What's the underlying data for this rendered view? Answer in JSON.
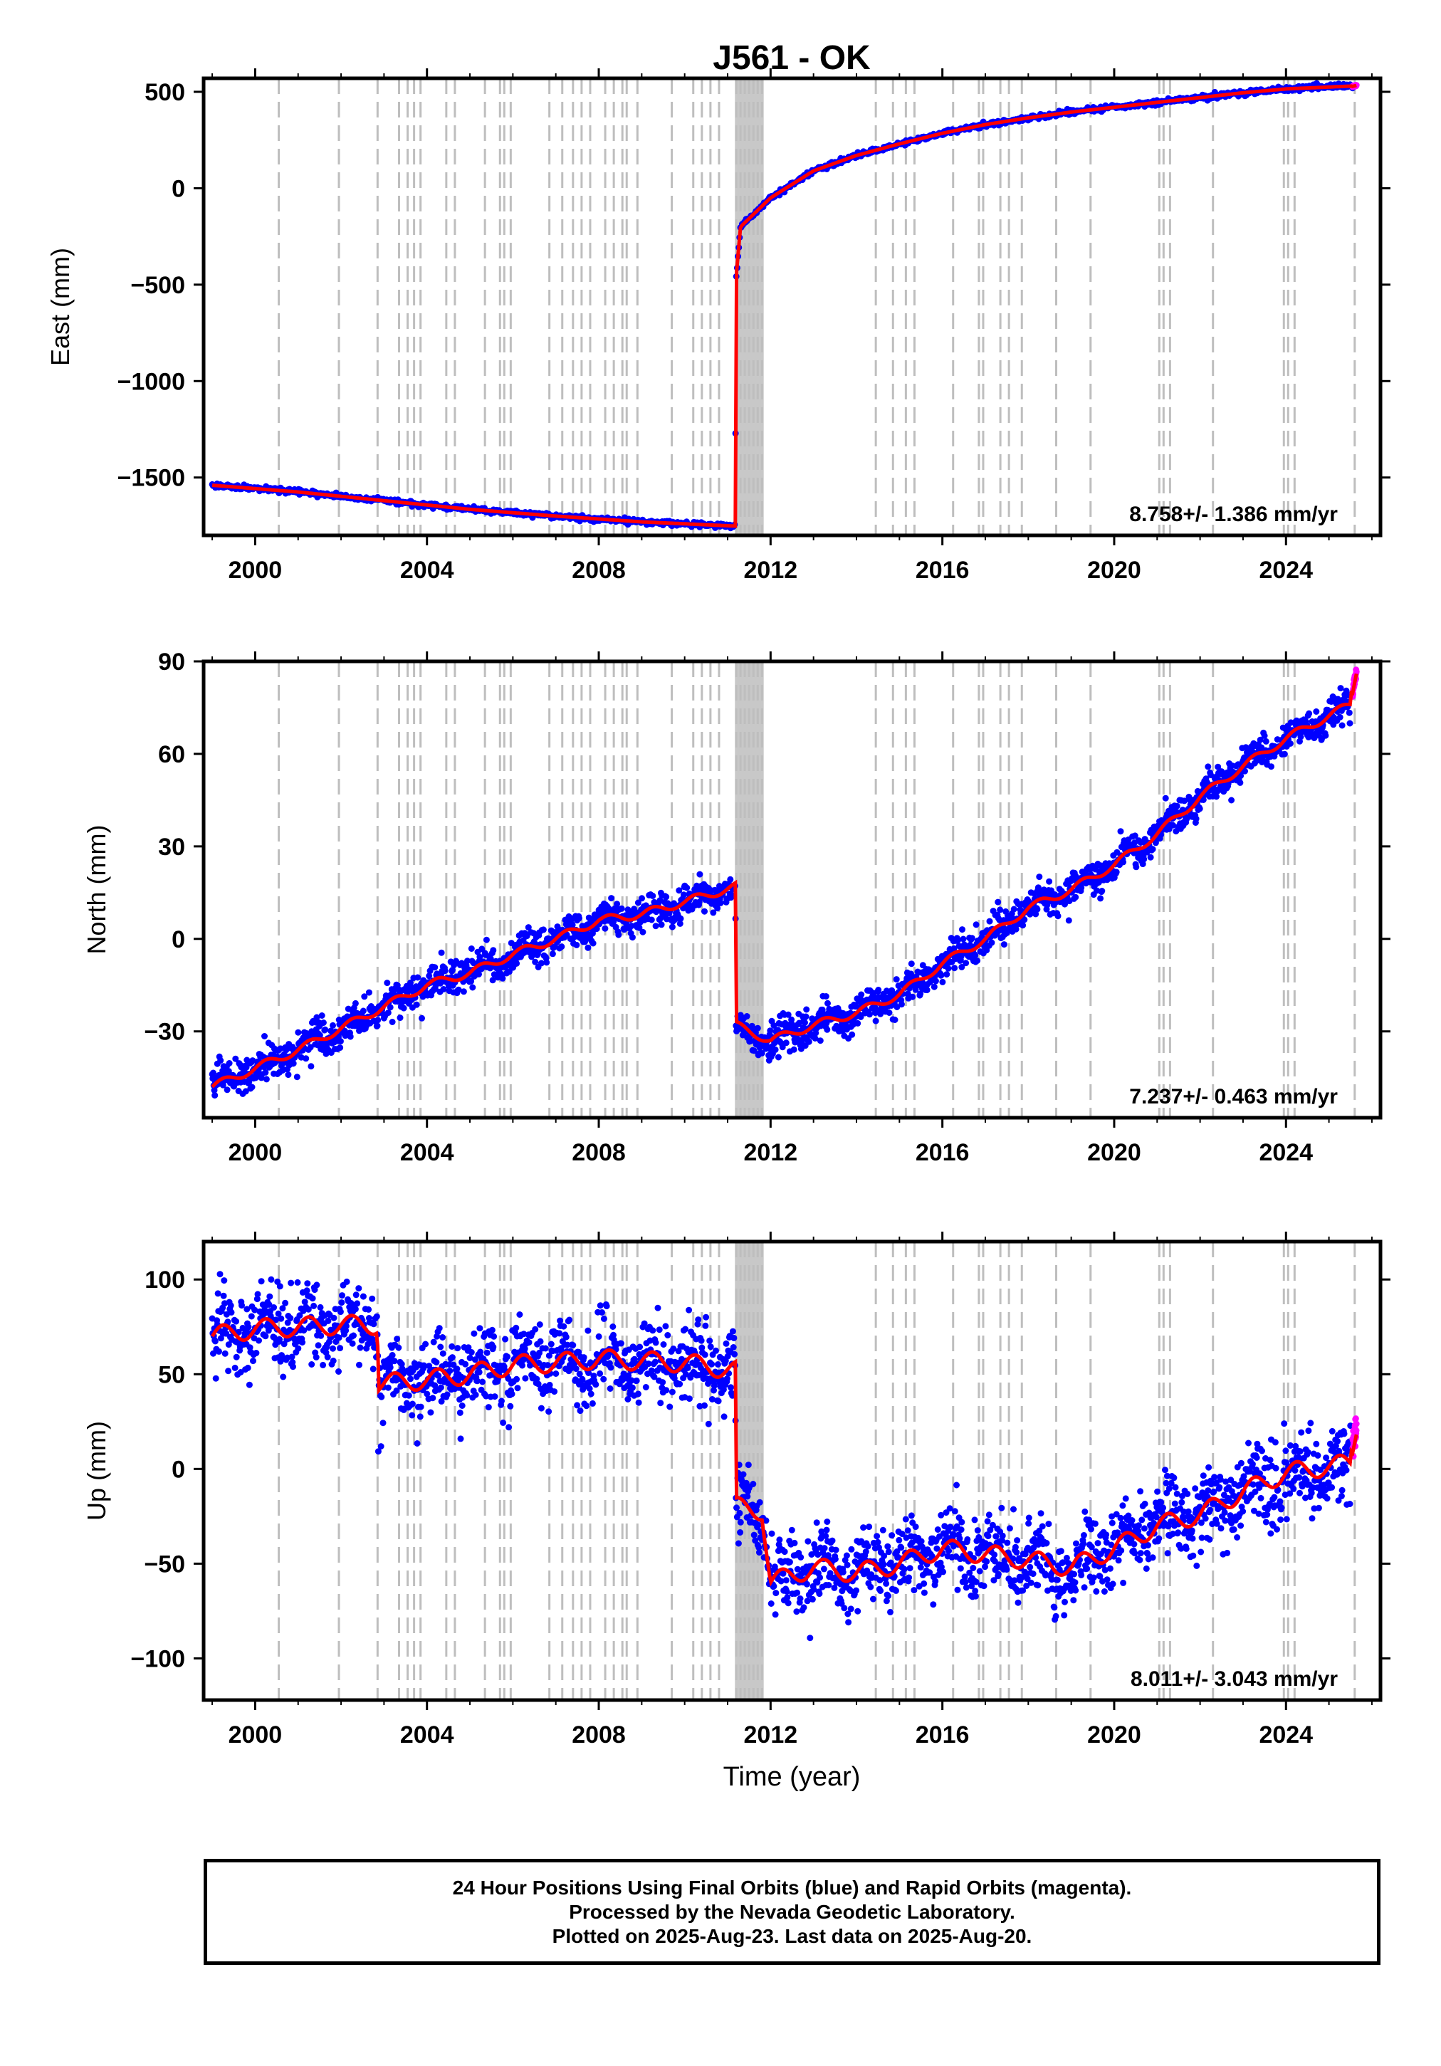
{
  "title": "J561 - OK",
  "footer": {
    "line1": "24 Hour Positions Using Final Orbits (blue) and Rapid Orbits (magenta).",
    "line2": "Processed by the Nevada Geodetic Laboratory.",
    "line3": "Plotted on 2025-Aug-23. Last data on 2025-Aug-20."
  },
  "colors": {
    "final_orbits": "#0000ff",
    "rapid_orbits": "#ff00ff",
    "model_fit": "#ff0000",
    "event_lines": "#bebebe"
  },
  "chart_data": [
    {
      "type": "scatter",
      "panel": "east",
      "ylabel": "East (mm)",
      "xlabel": "",
      "xlim": [
        1998.8,
        2026.2
      ],
      "ylim": [
        -1800,
        570
      ],
      "xticks": [
        2000,
        2004,
        2008,
        2012,
        2016,
        2020,
        2024
      ],
      "yticks": [
        -1500,
        -1000,
        -500,
        0,
        500
      ],
      "ytick_labels": [
        "−1500",
        "−1000",
        "−500",
        "0",
        "500"
      ],
      "grid": false,
      "rate_text": "8.758+/- 1.386 mm/yr",
      "series": [
        {
          "kind": "final",
          "x": [
            1999.0,
            2001.0,
            2003.0,
            2005.0,
            2007.0,
            2009.0,
            2011.18,
            2011.19,
            2011.3,
            2012.0,
            2013.0,
            2014.0,
            2015.0,
            2016.0,
            2017.0,
            2018.0,
            2019.0,
            2020.0,
            2021.0,
            2022.0,
            2023.0,
            2024.0,
            2025.55
          ],
          "y": [
            -1540,
            -1575,
            -1620,
            -1665,
            -1700,
            -1730,
            -1752,
            -480,
            -200,
            -50,
            90,
            170,
            230,
            285,
            330,
            365,
            395,
            420,
            445,
            470,
            495,
            515,
            530
          ]
        },
        {
          "kind": "rapid",
          "x": [
            2025.55,
            2025.64
          ],
          "y": [
            528,
            533
          ]
        }
      ]
    },
    {
      "type": "scatter",
      "panel": "north",
      "ylabel": "North (mm)",
      "xlabel": "",
      "xlim": [
        1998.8,
        2026.2
      ],
      "ylim": [
        -58,
        90
      ],
      "xticks": [
        2000,
        2004,
        2008,
        2012,
        2016,
        2020,
        2024
      ],
      "yticks": [
        -30,
        0,
        30,
        60,
        90
      ],
      "ytick_labels": [
        "−30",
        "0",
        "30",
        "60",
        "90"
      ],
      "grid": false,
      "rate_text": "7.237+/- 0.463 mm/yr",
      "series": [
        {
          "kind": "final",
          "x": [
            1999.0,
            2000.0,
            2001.0,
            2002.0,
            2003.0,
            2004.0,
            2005.0,
            2006.0,
            2007.0,
            2008.0,
            2009.0,
            2010.0,
            2011.18,
            2011.19,
            2012.0,
            2013.0,
            2014.0,
            2015.0,
            2016.0,
            2017.0,
            2018.0,
            2019.0,
            2020.0,
            2021.0,
            2022.0,
            2023.0,
            2024.0,
            2025.5
          ],
          "y": [
            -48,
            -42,
            -36,
            -29,
            -22,
            -15,
            -11,
            -5,
            0,
            6,
            8,
            12,
            17,
            -28,
            -33,
            -28,
            -24,
            -18,
            -8,
            0,
            10,
            16,
            24,
            34,
            46,
            56,
            65,
            76
          ]
        },
        {
          "kind": "rapid",
          "x": [
            2025.55,
            2025.64
          ],
          "y": [
            80,
            87
          ]
        }
      ]
    },
    {
      "type": "scatter",
      "panel": "up",
      "ylabel": "Up (mm)",
      "xlabel": "Time (year)",
      "xlim": [
        1998.8,
        2026.2
      ],
      "ylim": [
        -122,
        120
      ],
      "xticks": [
        2000,
        2004,
        2008,
        2012,
        2016,
        2020,
        2024
      ],
      "yticks": [
        -100,
        -50,
        0,
        50,
        100
      ],
      "ytick_labels": [
        "−100",
        "−50",
        "0",
        "50",
        "100"
      ],
      "grid": false,
      "rate_text": "8.011+/- 3.043 mm/yr",
      "series": [
        {
          "kind": "final",
          "x": [
            1999.0,
            2000.0,
            2001.0,
            2002.0,
            2002.85,
            2002.86,
            2004.0,
            2005.0,
            2006.0,
            2007.0,
            2008.0,
            2009.0,
            2010.0,
            2011.18,
            2011.19,
            2011.8,
            2012.0,
            2013.0,
            2014.0,
            2015.0,
            2016.0,
            2017.0,
            2018.0,
            2019.0,
            2020.0,
            2021.0,
            2022.0,
            2023.0,
            2024.0,
            2025.5
          ],
          "y": [
            70,
            74,
            75,
            76,
            76,
            45,
            47,
            50,
            55,
            56,
            58,
            57,
            56,
            52,
            -20,
            -22,
            -60,
            -52,
            -55,
            -50,
            -42,
            -45,
            -48,
            -52,
            -42,
            -30,
            -24,
            -12,
            -2,
            3
          ]
        },
        {
          "kind": "rapid",
          "x": [
            2025.55,
            2025.64
          ],
          "y": [
            10,
            22
          ]
        }
      ]
    }
  ],
  "event_lines": [
    2000.55,
    2001.95,
    2002.85,
    2003.35,
    2003.55,
    2003.7,
    2003.85,
    2004.45,
    2004.65,
    2005.35,
    2005.7,
    2005.8,
    2005.95,
    2006.85,
    2007.15,
    2007.4,
    2007.6,
    2007.8,
    2008.15,
    2008.35,
    2008.55,
    2008.65,
    2008.9,
    2009.7,
    2010.2,
    2010.4,
    2010.6,
    2010.8,
    2011.2,
    2011.3,
    2011.4,
    2011.5,
    2011.6,
    2011.7,
    2011.8,
    2014.45,
    2014.85,
    2015.15,
    2015.35,
    2016.25,
    2016.85,
    2016.95,
    2017.35,
    2017.55,
    2017.85,
    2018.65,
    2019.45,
    2021.05,
    2021.15,
    2021.3,
    2022.3,
    2023.95,
    2024.05,
    2024.2,
    2025.6
  ],
  "event_band": [
    2011.17,
    2011.84
  ]
}
